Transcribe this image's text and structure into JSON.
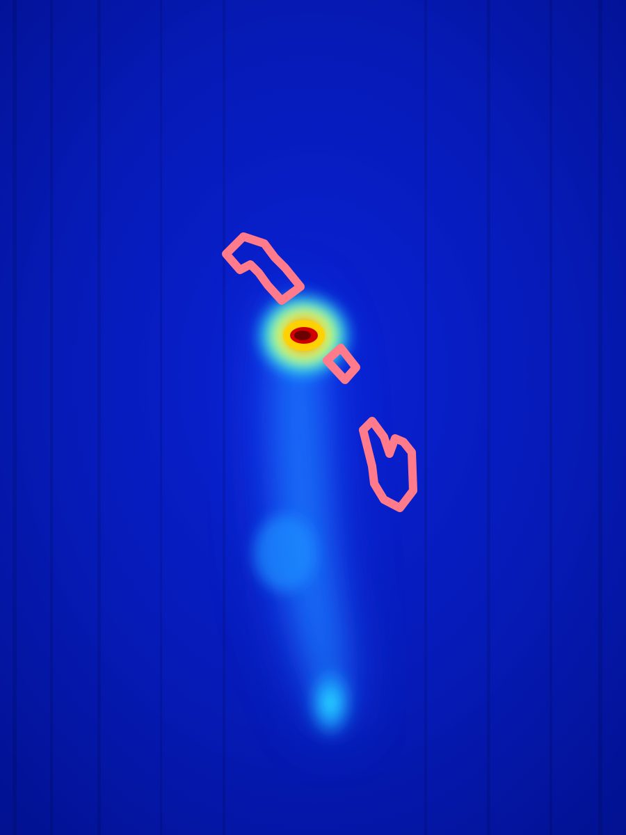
{
  "colors": {
    "background_deep": "#020a8c",
    "background_mid": "#0a1fd0",
    "plume_glow": "#1f7bff",
    "plume_bright": "#27d6ff",
    "hotspot_core": "#c00000",
    "hotspot_ring": "#ffd000",
    "hotspot_outer": "#3cff6a",
    "contour": "#ff7a8a"
  },
  "layers": {
    "heatmap": "heatmap",
    "contours": "region-outlines"
  }
}
